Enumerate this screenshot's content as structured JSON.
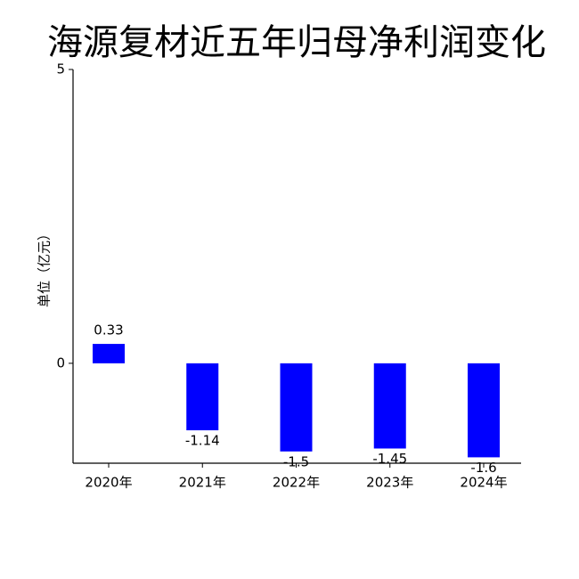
{
  "chart_data": {
    "type": "bar",
    "title": "海源复材近五年归母净利润变化",
    "y_label": "单位（亿元）",
    "categories": [
      "2020年",
      "2021年",
      "2022年",
      "2023年",
      "2024年"
    ],
    "values": [
      0.33,
      -1.14,
      -1.5,
      -1.45,
      -1.6
    ],
    "color": "#0000ff",
    "ylim": [
      -1.7,
      5
    ],
    "yticks": [
      0,
      5
    ],
    "grid": false
  }
}
